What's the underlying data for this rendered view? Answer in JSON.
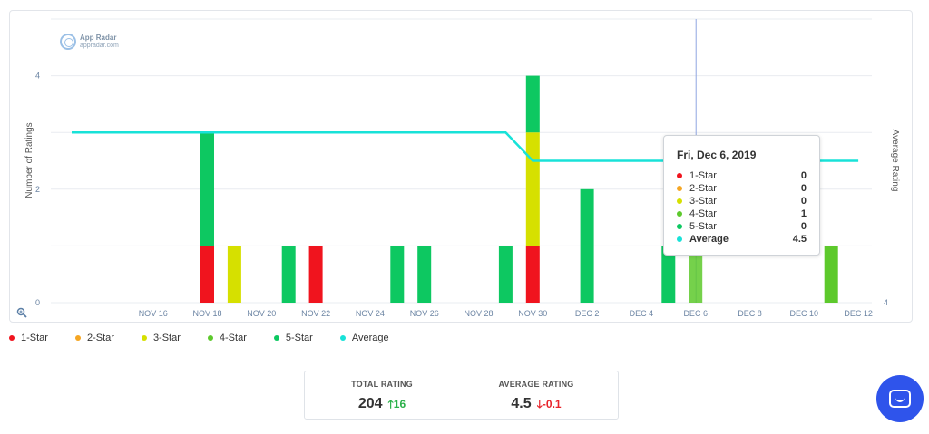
{
  "chart_data": {
    "type": "bar",
    "stacked": true,
    "x": [
      "Nov 13",
      "Nov 14",
      "Nov 15",
      "Nov 16",
      "Nov 17",
      "Nov 18",
      "Nov 19",
      "Nov 20",
      "Nov 21",
      "Nov 22",
      "Nov 23",
      "Nov 24",
      "Nov 25",
      "Nov 26",
      "Nov 27",
      "Nov 28",
      "Nov 29",
      "Nov 30",
      "Dec 1",
      "Dec 2",
      "Dec 3",
      "Dec 4",
      "Dec 5",
      "Dec 6",
      "Dec 7",
      "Dec 8",
      "Dec 9",
      "Dec 10",
      "Dec 11",
      "Dec 12"
    ],
    "xtick_labels": [
      "NOV 16",
      "NOV 18",
      "NOV 20",
      "NOV 22",
      "NOV 24",
      "NOV 26",
      "NOV 28",
      "NOV 30",
      "DEC 2",
      "DEC 4",
      "DEC 6",
      "DEC 8",
      "DEC 10",
      "DEC 12"
    ],
    "series": [
      {
        "name": "1-Star",
        "color": "#f0141e",
        "values": [
          0,
          0,
          0,
          0,
          0,
          1,
          0,
          0,
          0,
          1,
          0,
          0,
          0,
          0,
          0,
          0,
          0,
          1,
          0,
          0,
          0,
          0,
          0,
          0,
          0,
          0,
          0,
          0,
          0,
          0
        ]
      },
      {
        "name": "2-Star",
        "color": "#f5a623",
        "values": [
          0,
          0,
          0,
          0,
          0,
          0,
          0,
          0,
          0,
          0,
          0,
          0,
          0,
          0,
          0,
          0,
          0,
          0,
          0,
          0,
          0,
          0,
          0,
          0,
          0,
          0,
          0,
          0,
          0,
          0
        ]
      },
      {
        "name": "3-Star",
        "color": "#d6e000",
        "values": [
          0,
          0,
          0,
          0,
          0,
          0,
          1,
          0,
          0,
          0,
          0,
          0,
          0,
          0,
          0,
          0,
          0,
          2,
          0,
          0,
          0,
          0,
          0,
          0,
          0,
          0,
          0,
          0,
          0,
          0
        ]
      },
      {
        "name": "4-Star",
        "color": "#5dc92c",
        "values": [
          0,
          0,
          0,
          0,
          0,
          0,
          0,
          0,
          0,
          0,
          0,
          0,
          0,
          0,
          0,
          0,
          0,
          0,
          0,
          0,
          0,
          0,
          0,
          1,
          0,
          0,
          0,
          0,
          1,
          0
        ]
      },
      {
        "name": "5-Star",
        "color": "#0dc861",
        "values": [
          0,
          0,
          0,
          0,
          0,
          2,
          0,
          0,
          1,
          0,
          0,
          0,
          1,
          1,
          0,
          0,
          1,
          1,
          0,
          2,
          0,
          0,
          1,
          0,
          0,
          0,
          0,
          0,
          0,
          0
        ]
      }
    ],
    "average": {
      "name": "Average",
      "color": "#18e2d8",
      "values": [
        4.6,
        4.6,
        4.6,
        4.6,
        4.6,
        4.6,
        4.6,
        4.6,
        4.6,
        4.6,
        4.6,
        4.6,
        4.6,
        4.6,
        4.6,
        4.6,
        4.6,
        4.5,
        4.5,
        4.5,
        4.5,
        4.5,
        4.5,
        4.5,
        4.5,
        4.5,
        4.5,
        4.5,
        4.5,
        4.5
      ]
    },
    "ylabel_left": "Number of Ratings",
    "ylabel_right": "Average Rating",
    "yticks_left": [
      "0",
      "2",
      "4"
    ],
    "ytick_right": "4",
    "ylim_left": [
      0,
      5
    ],
    "highlighted_category": "Dec 6",
    "grid": true,
    "legend_position": "bottom-left"
  },
  "logo": {
    "name": "App Radar",
    "domain": "appradar.com"
  },
  "tooltip": {
    "title": "Fri, Dec 6, 2019",
    "rows": [
      {
        "name": "1-Star",
        "value": "0",
        "color": "#f0141e"
      },
      {
        "name": "2-Star",
        "value": "0",
        "color": "#f5a623"
      },
      {
        "name": "3-Star",
        "value": "0",
        "color": "#d6e000"
      },
      {
        "name": "4-Star",
        "value": "1",
        "color": "#5dc92c"
      },
      {
        "name": "5-Star",
        "value": "0",
        "color": "#0dc861"
      },
      {
        "name": "Average",
        "value": "4.5",
        "color": "#18e2d8"
      }
    ]
  },
  "legend": [
    {
      "name": "1-Star",
      "color": "#f0141e"
    },
    {
      "name": "2-Star",
      "color": "#f5a623"
    },
    {
      "name": "3-Star",
      "color": "#d6e000"
    },
    {
      "name": "4-Star",
      "color": "#5dc92c"
    },
    {
      "name": "5-Star",
      "color": "#0dc861"
    },
    {
      "name": "Average",
      "color": "#18e2d8"
    }
  ],
  "summary": {
    "total_label": "TOTAL RATING",
    "total_value": "204",
    "total_delta": "16",
    "average_label": "AVERAGE RATING",
    "average_value": "4.5",
    "average_delta": "-0.1"
  }
}
